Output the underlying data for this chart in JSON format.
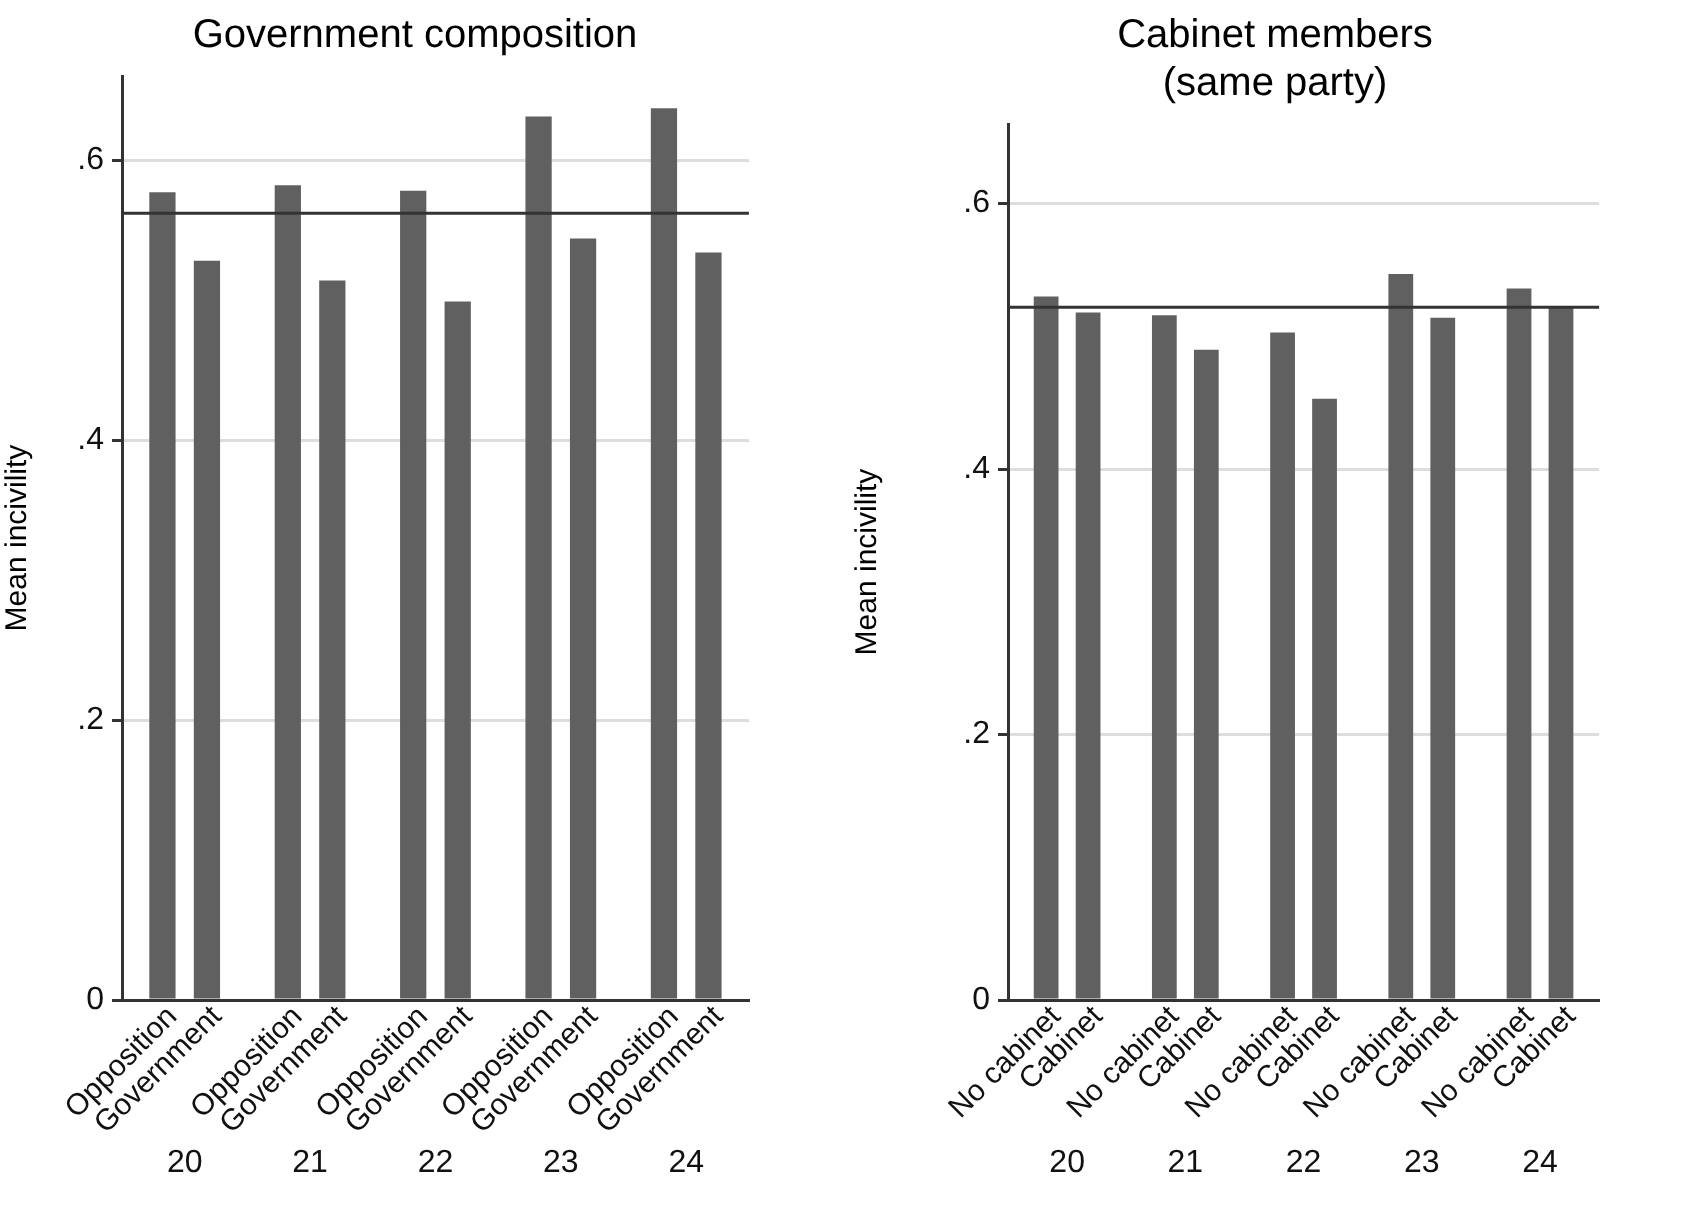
{
  "chart_data": [
    {
      "type": "bar",
      "title": "Government composition",
      "ylabel": "Mean incivility",
      "categories": [
        "20",
        "21",
        "22",
        "23",
        "24"
      ],
      "series": [
        {
          "name": "Opposition",
          "color": "#606060",
          "values": [
            0.577,
            0.582,
            0.578,
            0.631,
            0.637
          ]
        },
        {
          "name": "Government",
          "color": "#606060",
          "values": [
            0.528,
            0.514,
            0.499,
            0.544,
            0.534
          ]
        }
      ],
      "ylim": [
        0,
        0.66
      ],
      "yticks": [
        0,
        {
          "value": 0.2,
          "label": ".2"
        },
        {
          "value": 0.4,
          "label": ".4"
        },
        {
          "value": 0.6,
          "label": ".6"
        }
      ],
      "ref_lines": [
        {
          "axis": "y",
          "value": 0.562,
          "color": "#333333"
        }
      ],
      "grid": "y",
      "legend": false
    },
    {
      "type": "bar",
      "title": "Cabinet members\n(same party)",
      "ylabel": "Mean incivility",
      "categories": [
        "20",
        "21",
        "22",
        "23",
        "24"
      ],
      "series": [
        {
          "name": "No cabinet",
          "color": "#606060",
          "values": [
            0.53,
            0.516,
            0.503,
            0.547,
            0.536
          ]
        },
        {
          "name": "Cabinet",
          "color": "#606060",
          "values": [
            0.518,
            0.49,
            0.453,
            0.514,
            0.522
          ]
        }
      ],
      "ylim": [
        0,
        0.66
      ],
      "yticks": [
        0,
        {
          "value": 0.2,
          "label": ".2"
        },
        {
          "value": 0.4,
          "label": ".4"
        },
        {
          "value": 0.6,
          "label": ".6"
        }
      ],
      "ref_lines": [
        {
          "axis": "y",
          "value": 0.522,
          "color": "#333333"
        }
      ],
      "grid": "y",
      "legend": false
    }
  ]
}
